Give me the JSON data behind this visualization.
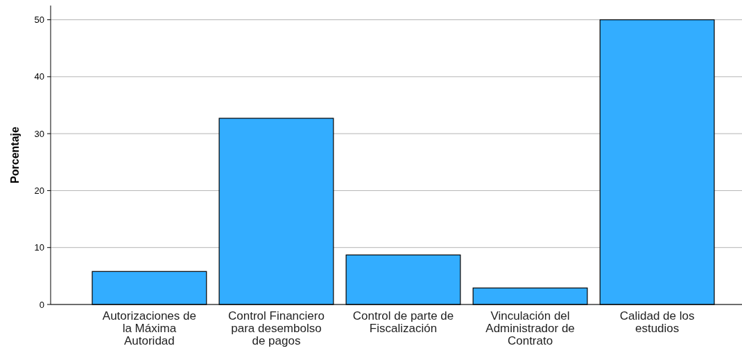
{
  "chart_data": {
    "type": "bar",
    "ylabel": "Porcentaje",
    "categories": [
      "Autorizaciones de la Máxima Autoridad",
      "Control Financiero para desembolso de pagos",
      "Control de parte de Fiscalización",
      "Vinculación del Administrador de Contrato",
      "Calidad de los estudios"
    ],
    "values": [
      5.8,
      32.7,
      8.7,
      2.9,
      50.0
    ],
    "color": "#33adff",
    "ylim": [
      0,
      52.5
    ],
    "yticks": [
      0,
      10,
      20,
      30,
      40,
      50
    ],
    "grid": "y"
  }
}
